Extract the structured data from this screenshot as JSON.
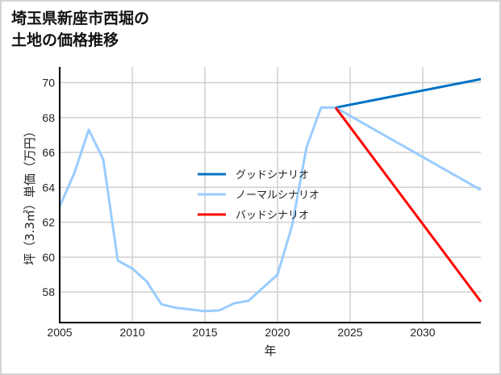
{
  "chart_data": {
    "type": "line",
    "title_lines": [
      "埼玉県新座市西堀の",
      "土地の価格推移"
    ],
    "xlabel": "年",
    "ylabel": "坪（3.3㎡）単価（万円）",
    "xlim": [
      2005,
      2034
    ],
    "ylim": [
      56.25,
      70.9
    ],
    "xticks": [
      2005,
      2010,
      2015,
      2020,
      2025,
      2030
    ],
    "yticks": [
      58,
      60,
      62,
      64,
      66,
      68,
      70
    ],
    "grid": true,
    "legend_position": "center",
    "history": {
      "x": [
        2005,
        2006,
        2007,
        2008,
        2009,
        2010,
        2011,
        2012,
        2013,
        2014,
        2015,
        2016,
        2017,
        2018,
        2019,
        2020,
        2021,
        2022,
        2023,
        2024
      ],
      "y": [
        62.9,
        64.8,
        67.3,
        65.6,
        59.8,
        59.35,
        58.6,
        57.3,
        57.1,
        57.0,
        56.9,
        56.95,
        57.35,
        57.5,
        58.25,
        59.0,
        61.8,
        66.3,
        68.57,
        68.57
      ]
    },
    "series": [
      {
        "name": "グッドシナリオ",
        "color": "#0072c6",
        "x": [
          2024,
          2034
        ],
        "y": [
          68.57,
          70.2
        ]
      },
      {
        "name": "ノーマルシナリオ",
        "color": "#99ccff",
        "x": [
          2024,
          2034
        ],
        "y": [
          68.57,
          63.85
        ]
      },
      {
        "name": "バッドシナリオ",
        "color": "#ff0000",
        "x": [
          2024,
          2034
        ],
        "y": [
          68.57,
          57.45
        ]
      }
    ],
    "history_color": "#99ccff"
  }
}
